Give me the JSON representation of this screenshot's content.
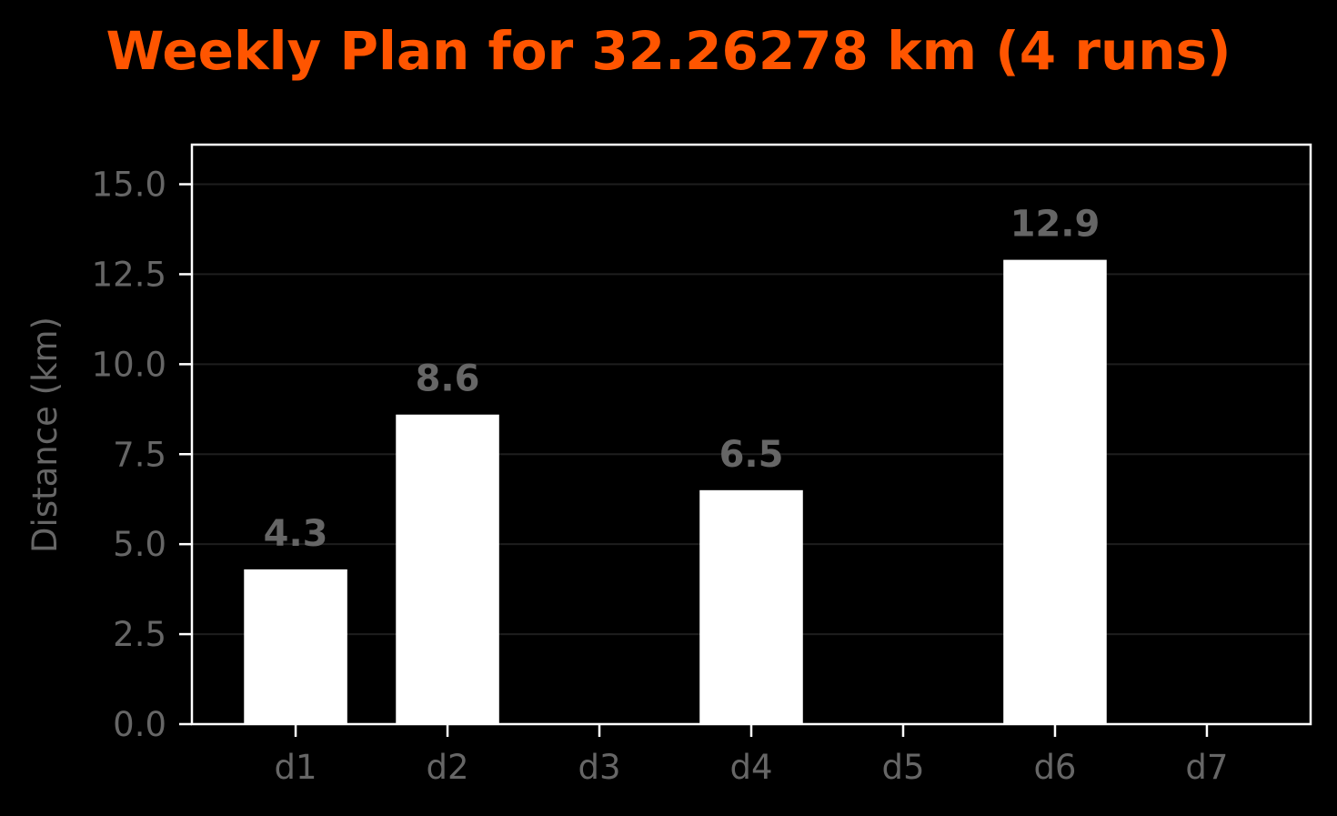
{
  "colors": {
    "background": "#000000",
    "title": "#ff5500",
    "bar": "#ffffff",
    "axis_frame": "#ffffff",
    "text_muted": "#666666",
    "grid": "#1e1e1e"
  },
  "chart_data": {
    "type": "bar",
    "title": "Weekly Plan for 32.26278 km (4 runs)",
    "xlabel": "",
    "ylabel": "Distance (km)",
    "categories": [
      "d1",
      "d2",
      "d3",
      "d4",
      "d5",
      "d6",
      "d7"
    ],
    "values": [
      4.3,
      8.6,
      0,
      6.5,
      0,
      12.9,
      0
    ],
    "data_labels": [
      "4.3",
      "8.6",
      "",
      "6.5",
      "",
      "12.9",
      ""
    ],
    "ylim": [
      0,
      16.1
    ],
    "yticks": [
      0,
      2.5,
      5,
      7.5,
      10,
      12.5,
      15
    ],
    "ytick_labels": [
      "0.0",
      "2.5",
      "5.0",
      "7.5",
      "10.0",
      "12.5",
      "15.0"
    ],
    "grid": true,
    "legend": "none"
  }
}
